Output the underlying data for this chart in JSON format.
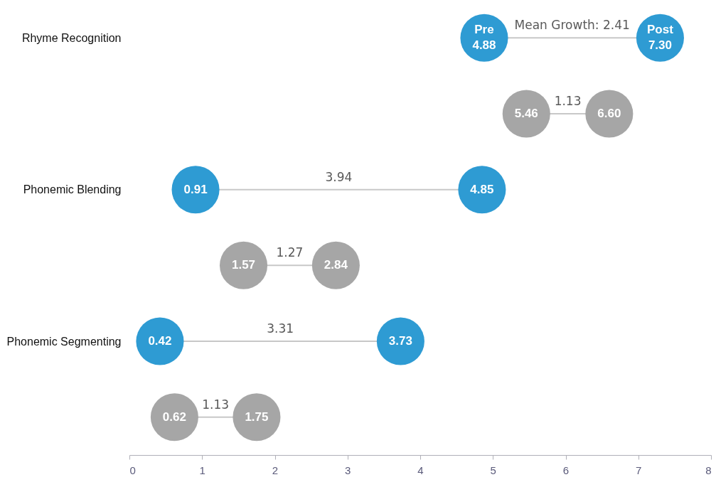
{
  "chart_data": {
    "type": "scatter",
    "orientation": "horizontal",
    "marker": "circle",
    "categories": [
      "Rhyme Recognition",
      null,
      "Phonemic Blending",
      null,
      "Phonemic Segmenting",
      null
    ],
    "series": [
      {
        "name": "Pre",
        "color": "#2e9bd3",
        "values": [
          4.88,
          null,
          0.91,
          null,
          0.42,
          null
        ],
        "value_labels": [
          "4.88",
          null,
          "0.91",
          null,
          "0.42",
          null
        ]
      },
      {
        "name": "Post",
        "color": "#2e9bd3",
        "values": [
          7.3,
          null,
          4.85,
          null,
          3.73,
          null
        ],
        "value_labels": [
          "7.30",
          null,
          "4.85",
          null,
          "3.73",
          null
        ]
      },
      {
        "color": "#a6a6a6",
        "values": [
          null,
          5.46,
          null,
          1.57,
          null,
          0.62
        ],
        "value_labels": [
          null,
          "5.46",
          null,
          "1.57",
          null,
          "0.62"
        ]
      },
      {
        "color": "#a6a6a6",
        "values": [
          null,
          6.6,
          null,
          2.84,
          null,
          1.75
        ],
        "value_labels": [
          null,
          "6.60",
          null,
          "2.84",
          null,
          "1.75"
        ]
      }
    ],
    "annotations": [
      "Mean Growth: 2.41",
      "1.13",
      "3.94",
      "1.27",
      "3.31",
      "1.13"
    ],
    "xlim": [
      0,
      8
    ],
    "xticks": [
      0,
      1,
      2,
      3,
      4,
      5,
      6,
      7,
      8
    ],
    "grid": false
  }
}
